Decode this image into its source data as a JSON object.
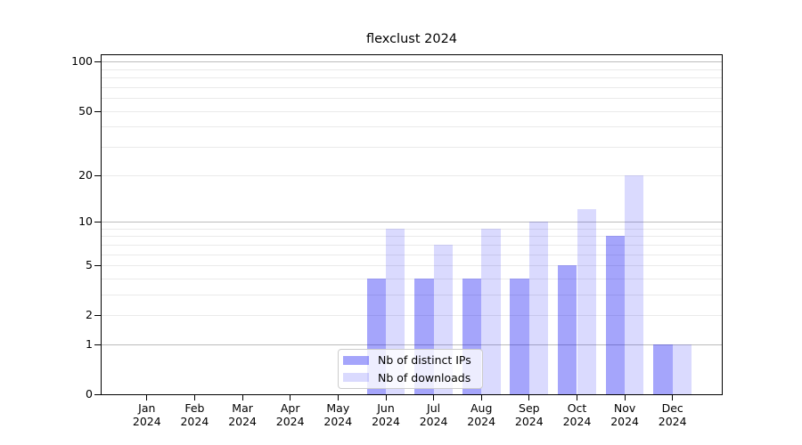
{
  "chart_data": {
    "type": "bar",
    "title": "flexclust 2024",
    "x": {
      "categories": [
        "Jan",
        "Feb",
        "Mar",
        "Apr",
        "May",
        "Jun",
        "Jul",
        "Aug",
        "Sep",
        "Oct",
        "Nov",
        "Dec"
      ],
      "year_label": "2024"
    },
    "series": [
      {
        "key": "distinct-ips",
        "name": "Nb of distinct IPs",
        "color_hex": "#a5a5fa",
        "color_rgba": "rgba(5,5,245,0.36)",
        "values": [
          0,
          0,
          0,
          0,
          0,
          4,
          4,
          4,
          4,
          5,
          8,
          1
        ]
      },
      {
        "key": "downloads",
        "name": "Nb of downloads",
        "color_hex": "#d9d9fb",
        "color_rgba": "rgba(5,5,245,0.15)",
        "values": [
          0,
          0,
          0,
          0,
          0,
          9,
          7,
          9,
          10,
          12,
          20,
          1
        ]
      }
    ],
    "yscale": "log1p",
    "ylim": [
      0,
      110
    ],
    "yticks": [
      100,
      50,
      20,
      10,
      5,
      2,
      1,
      0
    ],
    "grid": {
      "major": [
        1,
        10,
        100
      ],
      "minor": [
        2,
        3,
        4,
        5,
        6,
        7,
        8,
        9,
        20,
        30,
        40,
        50,
        60,
        70,
        80,
        90
      ],
      "major_color": "#bcbcbc",
      "minor_color": "#eaeaea"
    },
    "legend": {
      "position": "inside-bottom-center"
    }
  }
}
